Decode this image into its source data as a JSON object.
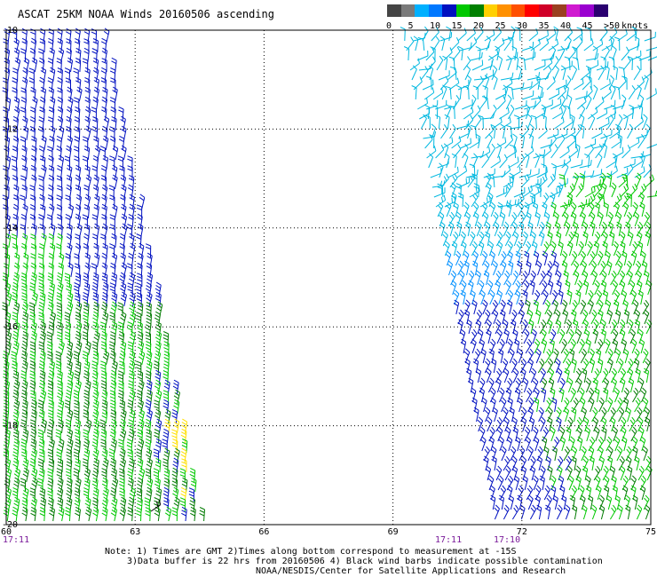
{
  "title": "ASCAT 25KM NOAA Winds 20160506 ascending",
  "legend": {
    "colors": [
      "#444444",
      "#7a7a7a",
      "#00b0ff",
      "#0078ff",
      "#0010c0",
      "#00c800",
      "#008000",
      "#ffd000",
      "#ff9000",
      "#ff5000",
      "#ff0000",
      "#d00028",
      "#9a4020",
      "#d01ad0",
      "#9a00d0",
      "#2a0070"
    ],
    "ticks": [
      "0",
      "5",
      "10",
      "15",
      "20",
      "25",
      "30",
      "35",
      "40",
      "45",
      ">50"
    ],
    "unit": "knots"
  },
  "axes": {
    "lat_labels": [
      "-10",
      "-12",
      "-14",
      "-16",
      "-18",
      "-20"
    ],
    "lon_labels": [
      "60",
      "63",
      "66",
      "69",
      "72",
      "75"
    ],
    "lat_range": [
      -20,
      -10
    ],
    "lon_range": [
      60,
      75
    ],
    "grid": "dotted"
  },
  "pass_times": [
    "17:11",
    "17:11",
    "17:10"
  ],
  "notes": {
    "line1": "Note: 1) Times are GMT 2)Times along bottom correspond to measurement at -15S",
    "line2": "3)Data buffer is 22 hrs from 20160506 4) Black wind barbs indicate possible contamination",
    "line3": "NOAA/NESDIS/Center for Satellite Applications and Research"
  },
  "swaths": [
    {
      "name": "west-swath",
      "lon_west_top": 60,
      "lon_east_top": 62.4,
      "lon_west_bottom": 60,
      "lon_east_bottom": 64.6,
      "dominant_speeds": [
        "15-20 knots",
        "20-25 knots"
      ]
    },
    {
      "name": "east-swath",
      "lon_west_top": 69.3,
      "lon_east_top": 75,
      "lon_west_bottom": 71.5,
      "lon_east_bottom": 75,
      "dominant_speeds": [
        "10-15 knots",
        "15-20 knots",
        "20-25 knots"
      ]
    }
  ],
  "colors": {
    "grid": "#000000",
    "time_label": "#7a1a9a",
    "contamination": "#000000"
  }
}
